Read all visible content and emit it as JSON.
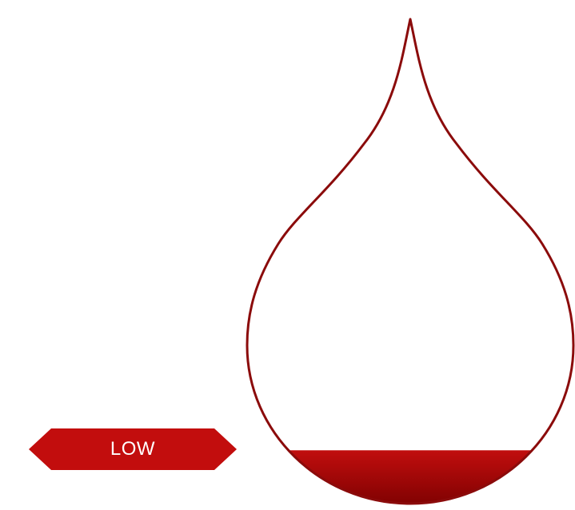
{
  "gauge": {
    "level_label": "LOW",
    "fill_level": 0.11,
    "colors": {
      "outline": "#8b0b0b",
      "fill_top": "#c10e0e",
      "fill_bottom": "#7a0000",
      "badge": "#c20d0d",
      "badge_text": "#ffffff"
    }
  }
}
